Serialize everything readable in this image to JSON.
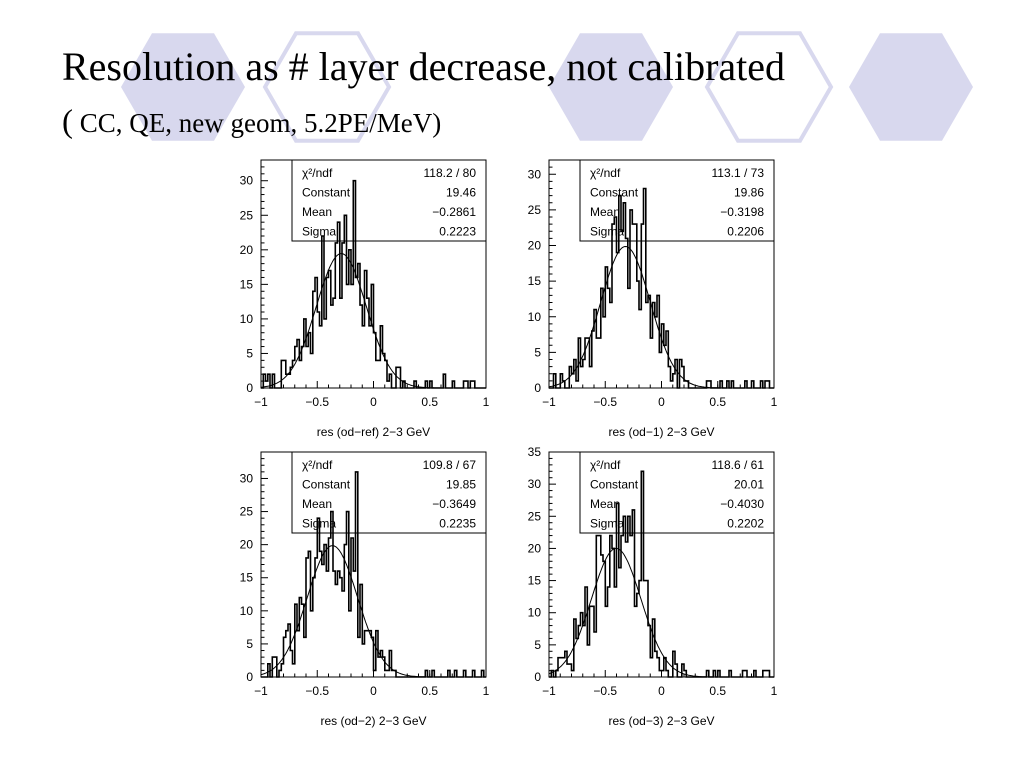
{
  "slide": {
    "title": "Resolution as # layer decrease, not calibrated",
    "subtitle_open": "(",
    "subtitle_text": " CC, QE, new geom, 5.2PE/MeV",
    "subtitle_close": ")",
    "background_hexagon_color": "#d8d8ee"
  },
  "stats_labels": [
    "χ²/ndf",
    "Constant",
    "Mean",
    "Sigma"
  ],
  "chart_data": [
    {
      "type": "histogram",
      "xlabel": "res (od−ref) 2−3 GeV",
      "xlim": [
        -1,
        1
      ],
      "ylim": [
        0,
        33
      ],
      "x_ticks": [
        "−1",
        "−0.5",
        "0",
        "0.5",
        "1"
      ],
      "y_ticks": [
        0,
        5,
        10,
        15,
        20,
        25,
        30
      ],
      "stats": {
        "chi2": "118.2",
        "ndf": "80",
        "constant": "19.46",
        "mean": "−0.2861",
        "sigma": "0.2223"
      },
      "fit": {
        "constant": 19.46,
        "mean": -0.2861,
        "sigma": 0.2223
      },
      "peak": {
        "x": -0.18,
        "y": 30
      },
      "seed": 7
    },
    {
      "type": "histogram",
      "xlabel": "res (od−1) 2−3 GeV",
      "xlim": [
        -1,
        1
      ],
      "ylim": [
        0,
        32
      ],
      "x_ticks": [
        "−1",
        "−0.5",
        "0",
        "0.5",
        "1"
      ],
      "y_ticks": [
        0,
        5,
        10,
        15,
        20,
        25,
        30
      ],
      "stats": {
        "chi2": "113.1",
        "ndf": "73",
        "constant": "19.86",
        "mean": "−0.3198",
        "sigma": "0.2206"
      },
      "fit": {
        "constant": 19.86,
        "mean": -0.3198,
        "sigma": 0.2206
      },
      "peak": {
        "x": -0.16,
        "y": 28
      },
      "seed": 19
    },
    {
      "type": "histogram",
      "xlabel": "res (od−2) 2−3 GeV",
      "xlim": [
        -1,
        1
      ],
      "ylim": [
        0,
        34
      ],
      "x_ticks": [
        "−1",
        "−0.5",
        "0",
        "0.5",
        "1"
      ],
      "y_ticks": [
        0,
        5,
        10,
        15,
        20,
        25,
        30
      ],
      "stats": {
        "chi2": "109.8",
        "ndf": "67",
        "constant": "19.85",
        "mean": "−0.3649",
        "sigma": "0.2235"
      },
      "fit": {
        "constant": 19.85,
        "mean": -0.3649,
        "sigma": 0.2235
      },
      "peak": {
        "x": -0.16,
        "y": 31
      },
      "seed": 31
    },
    {
      "type": "histogram",
      "xlabel": "res (od−3) 2−3 GeV",
      "xlim": [
        -1,
        1
      ],
      "ylim": [
        0,
        35
      ],
      "x_ticks": [
        "−1",
        "−0.5",
        "0",
        "0.5",
        "1"
      ],
      "y_ticks": [
        0,
        5,
        10,
        15,
        20,
        25,
        30,
        35
      ],
      "stats": {
        "chi2": "118.6",
        "ndf": "61",
        "constant": "20.01",
        "mean": "−0.4030",
        "sigma": "0.2202"
      },
      "fit": {
        "constant": 20.01,
        "mean": -0.403,
        "sigma": 0.2202
      },
      "peak": {
        "x": -0.18,
        "y": 32
      },
      "seed": 47
    }
  ]
}
